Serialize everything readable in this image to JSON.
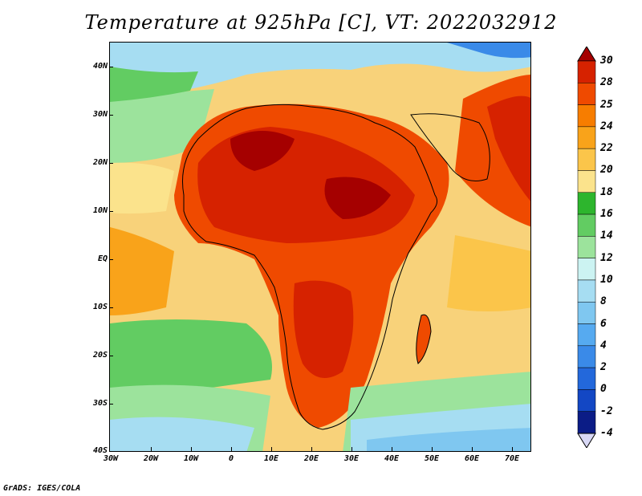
{
  "title": "Temperature at 925hPa [C], VT: 2022032912",
  "credit": "GrADS: IGES/COLA",
  "map": {
    "lat_labels": [
      "40N",
      "30N",
      "20N",
      "10N",
      "EQ",
      "10S",
      "20S",
      "30S",
      "40S"
    ],
    "lon_labels": [
      "30W",
      "20W",
      "10W",
      "0",
      "10E",
      "20E",
      "30E",
      "40E",
      "50E",
      "60E",
      "70E"
    ]
  },
  "colorbar": {
    "labels": [
      "30",
      "28",
      "25",
      "24",
      "22",
      "20",
      "18",
      "16",
      "14",
      "12",
      "10",
      "8",
      "6",
      "4",
      "2",
      "0",
      "-2",
      "-4"
    ],
    "colors": [
      "#a50000",
      "#d62200",
      "#ef4a00",
      "#f77d00",
      "#f9a31a",
      "#fbc54a",
      "#fbe38c",
      "#2db52d",
      "#62cc62",
      "#9ce39c",
      "#ccf3f2",
      "#a6ddf2",
      "#7fc7f0",
      "#56aaf0",
      "#3a8ae8",
      "#2368db",
      "#1347c4",
      "#0b1c86",
      "#d8d8f5"
    ]
  }
}
